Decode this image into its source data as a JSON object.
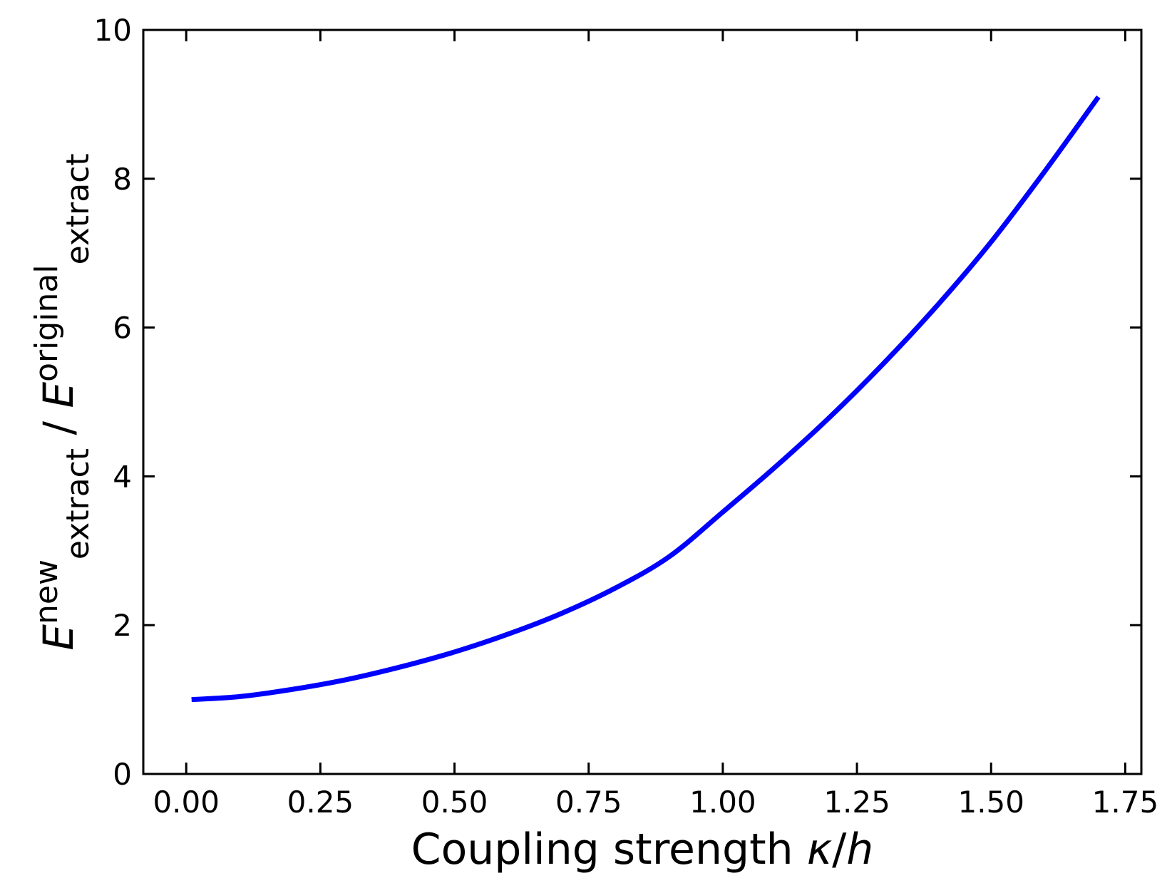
{
  "chart_data": {
    "type": "line",
    "title": "",
    "xlabel": {
      "main": "Coupling strength ",
      "var1": "κ",
      "sep": "/",
      "var2": "h"
    },
    "ylabel": {
      "E1": "E",
      "sub1": "extract",
      "sup1": "new",
      "slash": " / ",
      "E2": "E",
      "sub2": "extract",
      "sup2": "original"
    },
    "xlim": [
      -0.08,
      1.78
    ],
    "ylim": [
      0,
      10
    ],
    "xticks": [
      0.0,
      0.25,
      0.5,
      0.75,
      1.0,
      1.25,
      1.5,
      1.75
    ],
    "xtick_labels": [
      "0.00",
      "0.25",
      "0.50",
      "0.75",
      "1.00",
      "1.25",
      "1.50",
      "1.75"
    ],
    "yticks": [
      0,
      2,
      4,
      6,
      8,
      10
    ],
    "ytick_labels": [
      "0",
      "2",
      "4",
      "6",
      "8",
      "10"
    ],
    "grid": false,
    "series": [
      {
        "color": "#0000ff",
        "x": [
          0.01,
          0.1,
          0.2,
          0.3,
          0.4,
          0.5,
          0.6,
          0.7,
          0.8,
          0.9,
          1.0,
          1.1,
          1.2,
          1.3,
          1.4,
          1.5,
          1.6,
          1.7
        ],
        "y": [
          1.0,
          1.04,
          1.14,
          1.27,
          1.44,
          1.64,
          1.88,
          2.16,
          2.5,
          2.92,
          3.52,
          4.14,
          4.8,
          5.52,
          6.3,
          7.15,
          8.1,
          9.1
        ]
      }
    ]
  }
}
